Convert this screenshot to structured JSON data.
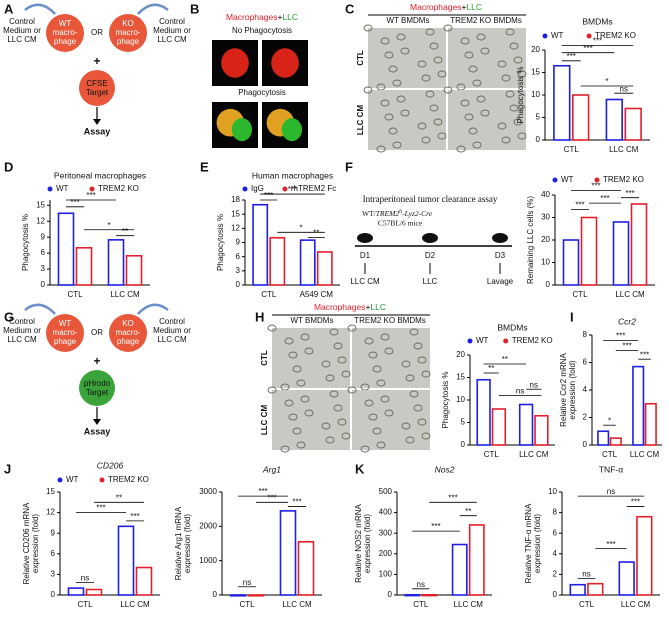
{
  "panel_labels": [
    "A",
    "B",
    "C",
    "D",
    "E",
    "F",
    "G",
    "H",
    "I",
    "J",
    "K"
  ],
  "diagram_A": {
    "medium_left": [
      "Control",
      "Medium or",
      "LLC CM"
    ],
    "wt": [
      "WT",
      "macro-",
      "phage"
    ],
    "or": "OR",
    "ko": [
      "KO",
      "macro-",
      "phage"
    ],
    "medium_right": [
      "Control",
      "Medium or",
      "LLC CM"
    ],
    "plus": "+",
    "target": [
      "CFSE",
      "Target"
    ],
    "assay": "Assay"
  },
  "diagram_G": {
    "medium_left": [
      "Control",
      "Medium or",
      "LLC CM"
    ],
    "wt": [
      "WT",
      "macro-",
      "phage"
    ],
    "or": "OR",
    "ko": [
      "KO",
      "macro-",
      "phage"
    ],
    "medium_right": [
      "Control",
      "Medium or",
      "LLC CM"
    ],
    "plus": "+",
    "target": [
      "pHrodo",
      "Target"
    ],
    "assay": "Assay"
  },
  "panel_B": {
    "title": [
      "Macrophages",
      "+",
      "LLC"
    ],
    "row1": "No Phagocytosis",
    "row2": "Phagocytosis"
  },
  "panel_C": {
    "title": [
      "Macrophages",
      "+",
      "LLC"
    ],
    "col1": "WT BMDMs",
    "col2": "TREM2 KO BMDMs",
    "row1": "CTL",
    "row2": "LLC CM"
  },
  "panel_H": {
    "title": [
      "Macrophages",
      "+",
      "LLC"
    ],
    "col1": "WT BMDMs",
    "col2": "TREM2 KO BMDMs",
    "row1": "CTL",
    "row2": "LLC CM"
  },
  "panel_F": {
    "title": "Intraperitoneal tumor clearance assay",
    "mice": [
      "WT/",
      "TREM2",
      "fl",
      "-Lyz2-Cre"
    ],
    "strain": "C57BL/6 mice",
    "days": [
      "D1",
      "D2",
      "D3"
    ],
    "steps": [
      "LLC CM",
      "LLC",
      "Lavage"
    ]
  },
  "chart_data": [
    {
      "type": "bar",
      "title": "BMDMs",
      "ylabel": [
        "Phagocytosis %"
      ],
      "categories": [
        "CTL",
        "LLC CM"
      ],
      "series": [
        {
          "name": "WT",
          "color": "#1f1fe0",
          "values": [
            16.5,
            9
          ]
        },
        {
          "name": "TREM2 KO",
          "color": "#e0202a",
          "values": [
            10,
            7
          ]
        }
      ],
      "ylim": [
        0,
        20
      ],
      "yticks": [
        0,
        5,
        10,
        15,
        20
      ],
      "significance": [
        "***",
        "***",
        "***",
        "*",
        "ns"
      ]
    },
    {
      "type": "bar",
      "title": "Peritoneal macrophages",
      "ylabel": [
        "Phagocytosis %"
      ],
      "categories": [
        "CTL",
        "LLC CM"
      ],
      "series": [
        {
          "name": "WT",
          "color": "#1f1fe0",
          "values": [
            13.5,
            8.5
          ]
        },
        {
          "name": "TREM2 KO",
          "color": "#e0202a",
          "values": [
            7,
            5.5
          ]
        }
      ],
      "ylim": [
        0,
        16
      ],
      "yticks": [
        0,
        3,
        6,
        9,
        12,
        15
      ],
      "significance": [
        "***",
        "***",
        "*",
        "**"
      ]
    },
    {
      "type": "bar",
      "title": "Human macrophages",
      "ylabel": [
        "Phagocytosis %"
      ],
      "categories": [
        "CTL",
        "A549 CM"
      ],
      "series": [
        {
          "name": "IgG",
          "color": "#1f1fe0",
          "values": [
            17,
            9.5
          ]
        },
        {
          "name": "rhTREM2 Fc",
          "color": "#e0202a",
          "values": [
            10,
            7
          ]
        }
      ],
      "ylim": [
        0,
        18
      ],
      "yticks": [
        0,
        3,
        6,
        9,
        12,
        15,
        18
      ],
      "significance": [
        "***",
        "***",
        "*",
        "**"
      ]
    },
    {
      "type": "bar",
      "ylabel": [
        "Remaining LLC cells (%)"
      ],
      "categories": [
        "CTL",
        "LLC CM"
      ],
      "series": [
        {
          "name": "WT",
          "color": "#1f1fe0",
          "values": [
            20,
            28
          ]
        },
        {
          "name": "TREM2 KO",
          "color": "#e0202a",
          "values": [
            30,
            36
          ]
        }
      ],
      "ylim": [
        0,
        40
      ],
      "yticks": [
        0,
        10,
        20,
        30,
        40
      ],
      "significance": [
        "***",
        "***",
        "***",
        "***"
      ]
    },
    {
      "type": "bar",
      "title": "BMDMs",
      "ylabel": [
        "Phagocytosis %"
      ],
      "categories": [
        "CTL",
        "LLC CM"
      ],
      "series": [
        {
          "name": "WT",
          "color": "#1f1fe0",
          "values": [
            14.5,
            9
          ]
        },
        {
          "name": "TREM2 KO",
          "color": "#e0202a",
          "values": [
            8,
            6.5
          ]
        }
      ],
      "ylim": [
        0,
        20
      ],
      "yticks": [
        0,
        5,
        10,
        15,
        20
      ],
      "significance": [
        "**",
        "**",
        "ns",
        "ns"
      ]
    },
    {
      "type": "bar",
      "title": "Ccr2",
      "ylabel": [
        "Relative Ccr2 mRNA",
        "expression (fold)"
      ],
      "categories": [
        "CTL",
        "LLC CM"
      ],
      "series": [
        {
          "color": "#1f1fe0",
          "values": [
            1,
            5.7
          ]
        },
        {
          "color": "#e0202a",
          "values": [
            0.5,
            3
          ]
        }
      ],
      "ylim": [
        0,
        8
      ],
      "yticks": [
        0,
        2,
        4,
        6,
        8
      ],
      "significance": [
        "*",
        "***",
        "***",
        "***"
      ]
    },
    {
      "type": "bar",
      "title": "CD206",
      "ylabel": [
        "Relative CD206 mRNA",
        "expression (fold)"
      ],
      "categories": [
        "CTL",
        "LLC CM"
      ],
      "series": [
        {
          "name": "WT",
          "color": "#1f1fe0",
          "values": [
            1,
            10
          ]
        },
        {
          "name": "TREM2 KO",
          "color": "#e0202a",
          "values": [
            0.8,
            4
          ]
        }
      ],
      "ylim": [
        0,
        15
      ],
      "yticks": [
        0,
        3,
        6,
        9,
        12,
        15
      ],
      "significance": [
        "ns",
        "***",
        "***",
        "**"
      ]
    },
    {
      "type": "bar",
      "title": "Arg1",
      "ylabel": [
        "Relative Arg1 mRNA",
        "expression (fold)"
      ],
      "categories": [
        "CTL",
        "LLC CM"
      ],
      "series": [
        {
          "color": "#1f1fe0",
          "values": [
            1,
            2450
          ]
        },
        {
          "color": "#e0202a",
          "values": [
            1,
            1550
          ]
        }
      ],
      "ylim": [
        0,
        3000
      ],
      "yticks": [
        0,
        1000,
        2000,
        3000
      ],
      "significance": [
        "ns",
        "***",
        "***",
        "***"
      ]
    },
    {
      "type": "bar",
      "title": "Nos2",
      "ylabel": [
        "Relative NOS2 mRNA",
        "expression (fold)"
      ],
      "categories": [
        "CTL",
        "LLC CM"
      ],
      "series": [
        {
          "color": "#1f1fe0",
          "values": [
            1,
            245
          ]
        },
        {
          "color": "#e0202a",
          "values": [
            1,
            340
          ]
        }
      ],
      "ylim": [
        0,
        500
      ],
      "yticks": [
        0,
        100,
        200,
        300,
        400,
        500
      ],
      "significance": [
        "ns",
        "***",
        "**",
        "***"
      ]
    },
    {
      "type": "bar",
      "title": "TNF-α",
      "ylabel": [
        "Relative TNF-α mRNA",
        "expression (fold)"
      ],
      "categories": [
        "CTL",
        "LLC CM"
      ],
      "series": [
        {
          "color": "#1f1fe0",
          "values": [
            1,
            3.2
          ]
        },
        {
          "color": "#e0202a",
          "values": [
            1.1,
            7.6
          ]
        }
      ],
      "ylim": [
        0,
        10
      ],
      "yticks": [
        0,
        2,
        4,
        6,
        8,
        10
      ],
      "significance": [
        "ns",
        "***",
        "ns",
        "***"
      ]
    }
  ]
}
